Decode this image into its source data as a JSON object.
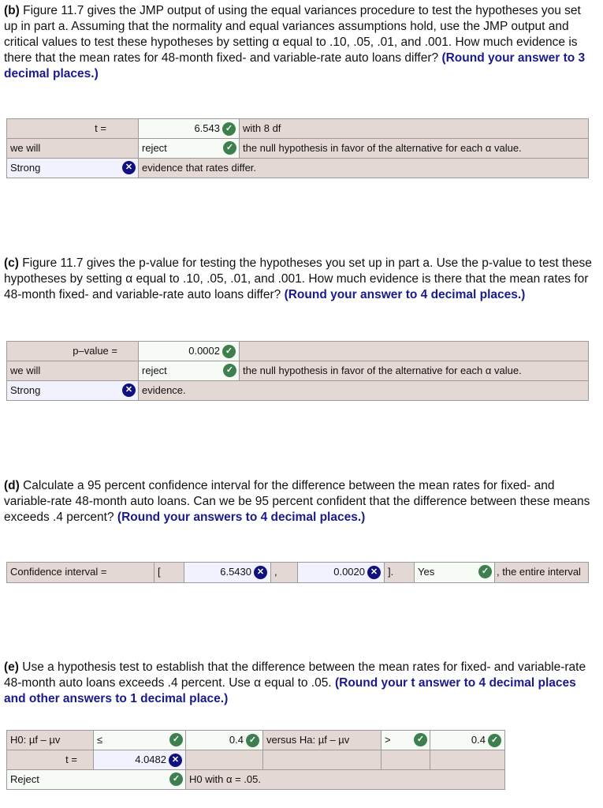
{
  "b": {
    "label": "(b)",
    "text": " Figure 11.7 gives the JMP output of using the equal variances procedure to test the hypotheses you set up in part a. Assuming that the normality and equal variances assumptions hold, use the JMP output and critical values to test these hypotheses by setting α equal to .10, .05, .01, and .001. How much evidence is there that the mean rates for 48-month fixed- and variable-rate auto loans differ? ",
    "hint": "(Round your answer to 3 decimal places.)",
    "t_label": "t =",
    "t_value": "6.543",
    "df": "with 8 df",
    "we_will": "we will",
    "decision": "reject",
    "null_text": "the null hypothesis in favor of the alternative for each α value.",
    "strength": "Strong",
    "evidence": "evidence that rates differ."
  },
  "c": {
    "label": "(c)",
    "text": " Figure 11.7 gives the p-value for testing the hypotheses you set up in part a. Use the p-value to test these hypotheses by setting α equal to .10, .05, .01, and .001. How much evidence is there that the mean rates for 48-month fixed- and variable-rate auto loans differ? ",
    "hint": "(Round your answer to 4 decimal places.)",
    "p_label": "p–value =",
    "p_value": "0.0002",
    "we_will": "we will",
    "decision": "reject",
    "null_text": "the null hypothesis in favor of the alternative for each α value.",
    "strength": "Strong",
    "evidence": "evidence."
  },
  "d": {
    "label": "(d)",
    "text": " Calculate a 95 percent confidence interval for the difference between the mean rates for fixed- and variable-rate 48-month auto loans. Can we be 95 percent confident that the difference between these means exceeds .4 percent? ",
    "hint": "(Round your answers to 4 decimal places.)",
    "ci_label": "Confidence interval =",
    "open": "[",
    "lower": "6.5430",
    "comma": ",",
    "upper": "0.0020",
    "close": "].",
    "answer": "Yes",
    "tail": ", the entire interval"
  },
  "e": {
    "label": "(e)",
    "text": " Use a hypothesis test to establish that the difference between the mean rates for fixed- and variable-rate 48-month auto loans exceeds .4 percent. Use α equal to .05. ",
    "hint": "(Round your t answer to 4 decimal places and other answers to 1 decimal place.)",
    "h0": "H0: µf – µv",
    "h0_op": "≤",
    "h0_val": "0.4",
    "ha": "versus Ha: µf – µv",
    "ha_op": ">",
    "ha_val": "0.4",
    "t_label": "t =",
    "t_value": "4.0482",
    "decision": "Reject",
    "conclusion": "H0 with α  = .05."
  },
  "icons": {
    "correct": "check-circle-icon",
    "incorrect": "x-circle-icon"
  },
  "colors": {
    "correct": "#3d7f4f",
    "incorrect": "#101080",
    "label_bg": "#e4d8d5",
    "hint": "#1a1a8c"
  }
}
